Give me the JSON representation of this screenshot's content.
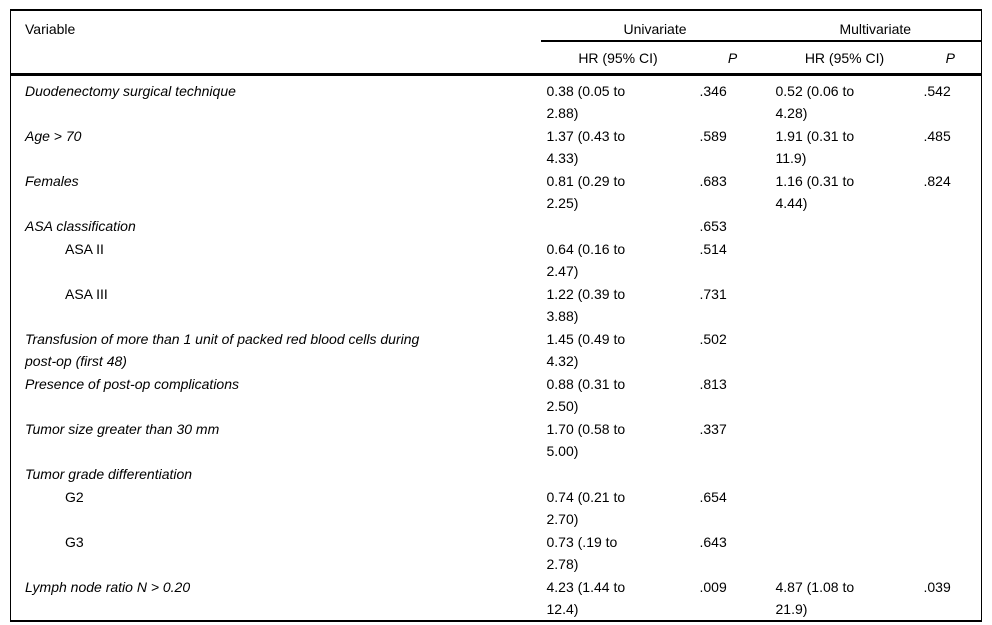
{
  "meta": {
    "background_color": "#ffffff",
    "line_color": "#000000",
    "text_color": "#000000"
  },
  "table": {
    "columns": {
      "variable": "Variable",
      "group_univariate": "Univariate",
      "group_multivariate": "Multivariate",
      "hr_header": "HR (95% CI)",
      "p_header": "P"
    },
    "rows": [
      {
        "variable": "Duodenectomy surgical technique",
        "italic": true,
        "indent": false,
        "uni_hr": "0.38 (0.05 to\n2.88)",
        "uni_p": ".346",
        "multi_hr": "0.52 (0.06 to\n4.28)",
        "multi_p": ".542"
      },
      {
        "variable": "Age > 70",
        "italic": true,
        "indent": false,
        "uni_hr": "1.37 (0.43 to\n4.33)",
        "uni_p": ".589",
        "multi_hr": "1.91 (0.31 to\n11.9)",
        "multi_p": ".485"
      },
      {
        "variable": "Females",
        "italic": true,
        "indent": false,
        "uni_hr": "0.81 (0.29 to\n2.25)",
        "uni_p": ".683",
        "multi_hr": "1.16 (0.31 to\n4.44)",
        "multi_p": ".824"
      },
      {
        "variable": "ASA classification",
        "italic": true,
        "indent": false,
        "uni_hr": "",
        "uni_p": ".653",
        "multi_hr": "",
        "multi_p": ""
      },
      {
        "variable": "ASA II",
        "italic": false,
        "indent": true,
        "uni_hr": "0.64 (0.16 to\n2.47)",
        "uni_p": ".514",
        "multi_hr": "",
        "multi_p": ""
      },
      {
        "variable": "ASA III",
        "italic": false,
        "indent": true,
        "uni_hr": "1.22 (0.39 to\n3.88)",
        "uni_p": ".731",
        "multi_hr": "",
        "multi_p": ""
      },
      {
        "variable": "Transfusion of more than 1 unit of packed red blood cells during\npost-op (first 48)",
        "italic": true,
        "indent": false,
        "uni_hr": "1.45 (0.49 to\n4.32)",
        "uni_p": ".502",
        "multi_hr": "",
        "multi_p": ""
      },
      {
        "variable": "Presence of post-op complications",
        "italic": true,
        "indent": false,
        "uni_hr": "0.88 (0.31 to\n2.50)",
        "uni_p": ".813",
        "multi_hr": "",
        "multi_p": ""
      },
      {
        "variable": "Tumor size greater than 30 mm",
        "italic": true,
        "indent": false,
        "uni_hr": "1.70 (0.58 to\n5.00)",
        "uni_p": ".337",
        "multi_hr": "",
        "multi_p": ""
      },
      {
        "variable": "Tumor grade differentiation",
        "italic": true,
        "indent": false,
        "uni_hr": "",
        "uni_p": "",
        "multi_hr": "",
        "multi_p": ""
      },
      {
        "variable": "G2",
        "italic": false,
        "indent": true,
        "uni_hr": "0.74 (0.21 to\n2.70)",
        "uni_p": ".654",
        "multi_hr": "",
        "multi_p": ""
      },
      {
        "variable": "G3",
        "italic": false,
        "indent": true,
        "uni_hr": "0.73 (.19 to\n2.78)",
        "uni_p": ".643",
        "multi_hr": "",
        "multi_p": ""
      },
      {
        "variable": "Lymph node ratio N > 0.20",
        "italic": true,
        "indent": false,
        "uni_hr": "4.23 (1.44 to\n12.4)",
        "uni_p": ".009",
        "multi_hr": "4.87 (1.08 to\n21.9)",
        "multi_p": ".039"
      }
    ]
  }
}
